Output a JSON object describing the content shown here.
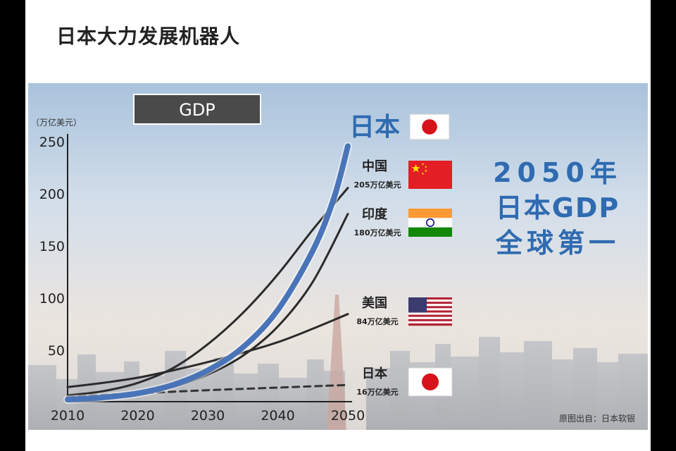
{
  "heading": "日本大力发展机器人",
  "chart_data": {
    "type": "line",
    "title": "GDP",
    "unit_label": "（万亿美元）",
    "x": [
      2010,
      2020,
      2030,
      2040,
      2050
    ],
    "x_ticks": [
      "2010",
      "2020",
      "2030",
      "2040",
      "2050"
    ],
    "y_ticks": [
      "250",
      "200",
      "150",
      "100",
      "50"
    ],
    "y_tick_values": [
      250,
      200,
      150,
      100,
      50
    ],
    "ylim": [
      0,
      250
    ],
    "xlim": [
      2010,
      2050
    ],
    "grid": false,
    "series": [
      {
        "name": "日本",
        "style": "thick-blue",
        "color": "#4a74b8",
        "x": [
          2010,
          2015,
          2020,
          2025,
          2030,
          2035,
          2040,
          2045,
          2048,
          2050
        ],
        "values": [
          2,
          4,
          8,
          16,
          30,
          52,
          88,
          145,
          195,
          245
        ]
      },
      {
        "name": "中国",
        "style": "solid",
        "color": "#2b2b2b",
        "x": [
          2010,
          2015,
          2020,
          2025,
          2030,
          2035,
          2040,
          2045,
          2050
        ],
        "values": [
          6,
          10,
          18,
          32,
          55,
          85,
          122,
          165,
          205
        ]
      },
      {
        "name": "印度",
        "style": "solid",
        "color": "#2b2b2b",
        "x": [
          2010,
          2015,
          2020,
          2025,
          2030,
          2035,
          2040,
          2045,
          2050
        ],
        "values": [
          2,
          4,
          8,
          14,
          26,
          44,
          72,
          115,
          180
        ]
      },
      {
        "name": "美国",
        "style": "solid",
        "color": "#2b2b2b",
        "x": [
          2010,
          2015,
          2020,
          2025,
          2030,
          2035,
          2040,
          2045,
          2050
        ],
        "values": [
          14,
          18,
          23,
          30,
          38,
          47,
          57,
          70,
          84
        ]
      },
      {
        "name": "日本",
        "style": "dashed",
        "color": "#333333",
        "x": [
          2010,
          2020,
          2030,
          2040,
          2050
        ],
        "values": [
          5,
          8,
          11,
          13.5,
          16
        ]
      }
    ],
    "legend": [
      {
        "label": "日本",
        "flag": "japan",
        "big": true
      },
      {
        "label": "中国",
        "sub": "205万亿美元",
        "flag": "china"
      },
      {
        "label": "印度",
        "sub": "180万亿美元",
        "flag": "india"
      },
      {
        "label": "美国",
        "sub": "84万亿美元",
        "flag": "usa"
      },
      {
        "label": "日本",
        "sub": "16万亿美元",
        "flag": "japan"
      }
    ],
    "annotation_lines": [
      "2050年",
      "日本GDP",
      "全球第一"
    ],
    "source": "原图出自：日本软银"
  },
  "colors": {
    "japan_line": "#4a74b8",
    "annotation": "#2f6bb0",
    "flag_red": "#d6131b",
    "china_red": "#e31e24",
    "china_yellow": "#ffde00",
    "india_saffron": "#ff9933",
    "india_green": "#138808",
    "usa_blue": "#3c3b6e",
    "usa_red": "#b22234"
  }
}
